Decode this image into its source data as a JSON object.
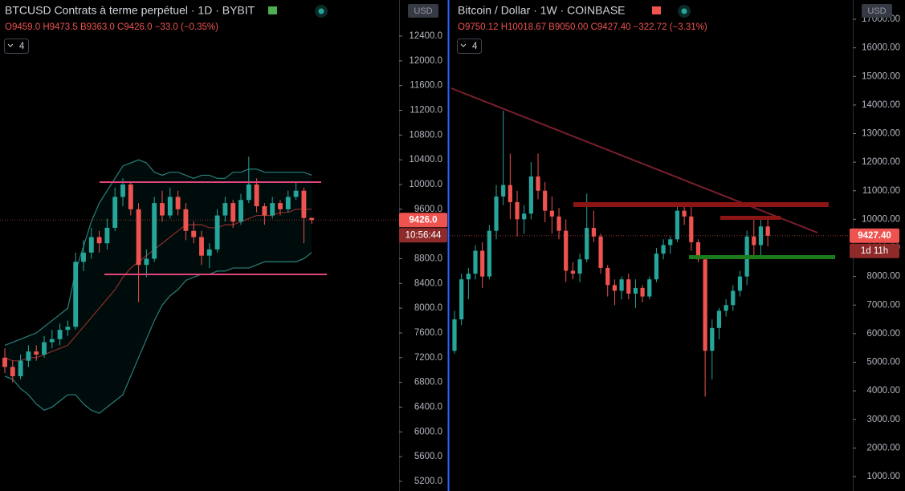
{
  "chart_data": [
    {
      "type": "candlestick",
      "title": "BTCUSD Contrats à terme perpétuel · 1D · BYBIT",
      "ohlc_text": "O9459.0 H9473.5 B9363.0 C9426.0 −33.0 (−0.35%)",
      "indicator_count": "4",
      "currency": "USD",
      "price_label": "9426.0",
      "countdown": "10:56:44",
      "up_color": "#26a69a",
      "down_color": "#ef5350",
      "ylim": [
        5044,
        12984
      ],
      "yticks": [
        {
          "value": 5200,
          "label": "5200.0"
        },
        {
          "value": 5600,
          "label": "5600.0"
        },
        {
          "value": 6000,
          "label": "6000.0"
        },
        {
          "value": 6400,
          "label": "6400.0"
        },
        {
          "value": 6800,
          "label": "6800.0"
        },
        {
          "value": 7200,
          "label": "7200.0"
        },
        {
          "value": 7600,
          "label": "7600.0"
        },
        {
          "value": 8000,
          "label": "8000.0"
        },
        {
          "value": 8400,
          "label": "8400.0"
        },
        {
          "value": 8800,
          "label": "8800.0"
        },
        {
          "value": 9200,
          "label": "9200.0"
        },
        {
          "value": 9600,
          "label": "9600.0"
        },
        {
          "value": 10000,
          "label": "10000.0"
        },
        {
          "value": 10400,
          "label": "10400.0"
        },
        {
          "value": 10800,
          "label": "10800.0"
        },
        {
          "value": 11200,
          "label": "11200.0"
        },
        {
          "value": 11600,
          "label": "11600.0"
        },
        {
          "value": 12000,
          "label": "12000.0"
        },
        {
          "value": 12400,
          "label": "12400.0"
        }
      ],
      "ohlc": [
        [
          7200,
          7350,
          6950,
          7050
        ],
        [
          7050,
          7150,
          6800,
          6900
        ],
        [
          6900,
          7250,
          6850,
          7150
        ],
        [
          7150,
          7400,
          7050,
          7300
        ],
        [
          7300,
          7400,
          7150,
          7250
        ],
        [
          7250,
          7550,
          7200,
          7450
        ],
        [
          7450,
          7650,
          7350,
          7500
        ],
        [
          7500,
          7750,
          7400,
          7650
        ],
        [
          7650,
          7800,
          7550,
          7700
        ],
        [
          7700,
          8900,
          7650,
          8750
        ],
        [
          8750,
          9100,
          8600,
          8900
        ],
        [
          8900,
          9300,
          8800,
          9150
        ],
        [
          9150,
          9250,
          8900,
          9050
        ],
        [
          9050,
          9450,
          8950,
          9300
        ],
        [
          9300,
          9950,
          9250,
          9800
        ],
        [
          9800,
          10100,
          9650,
          10000
        ],
        [
          10000,
          10050,
          9500,
          9600
        ],
        [
          9600,
          9700,
          8100,
          8700
        ],
        [
          8700,
          8950,
          8500,
          8800
        ],
        [
          8800,
          9800,
          8750,
          9700
        ],
        [
          9700,
          9900,
          9400,
          9500
        ],
        [
          9500,
          9950,
          9450,
          9800
        ],
        [
          9800,
          9900,
          9500,
          9600
        ],
        [
          9600,
          9700,
          9100,
          9250
        ],
        [
          9250,
          9400,
          9050,
          9150
        ],
        [
          9150,
          9250,
          8700,
          8850
        ],
        [
          8850,
          9050,
          8650,
          8950
        ],
        [
          8950,
          9600,
          8900,
          9500
        ],
        [
          9500,
          9800,
          9400,
          9700
        ],
        [
          9700,
          9750,
          9300,
          9400
        ],
        [
          9400,
          9850,
          9350,
          9750
        ],
        [
          9750,
          10450,
          9700,
          10000
        ],
        [
          10000,
          10100,
          9550,
          9650
        ],
        [
          9650,
          9700,
          9350,
          9500
        ],
        [
          9500,
          9800,
          9450,
          9700
        ],
        [
          9700,
          9750,
          9500,
          9600
        ],
        [
          9600,
          9900,
          9550,
          9800
        ],
        [
          9800,
          10050,
          9750,
          9900
        ],
        [
          9900,
          9950,
          9050,
          9459
        ],
        [
          9459,
          9473.5,
          9363,
          9426
        ]
      ],
      "bands": {
        "upper": [
          7400,
          7450,
          7500,
          7550,
          7600,
          7700,
          7800,
          7900,
          8000,
          8600,
          9000,
          9400,
          9700,
          9900,
          10100,
          10300,
          10350,
          10400,
          10350,
          10200,
          10150,
          10200,
          10200,
          10150,
          10100,
          10150,
          10150,
          10100,
          10100,
          10200,
          10200,
          10250,
          10250,
          10200,
          10200,
          10200,
          10200,
          10200,
          10200,
          10150
        ],
        "basis": [
          7200,
          7150,
          7150,
          7200,
          7200,
          7250,
          7300,
          7350,
          7400,
          7550,
          7700,
          7850,
          8000,
          8150,
          8300,
          8500,
          8650,
          8750,
          8850,
          8950,
          9050,
          9150,
          9250,
          9350,
          9350,
          9350,
          9300,
          9300,
          9350,
          9350,
          9400,
          9450,
          9500,
          9500,
          9500,
          9550,
          9550,
          9600,
          9600,
          9600
        ],
        "lower": [
          6900,
          6850,
          6700,
          6600,
          6450,
          6350,
          6400,
          6500,
          6600,
          6600,
          6450,
          6350,
          6300,
          6400,
          6500,
          6600,
          6900,
          7200,
          7500,
          7800,
          8050,
          8200,
          8300,
          8450,
          8500,
          8550,
          8550,
          8600,
          8600,
          8650,
          8650,
          8650,
          8700,
          8750,
          8750,
          8750,
          8750,
          8750,
          8800,
          8900
        ],
        "band_color": "#2a7f7a",
        "basis_color": "#8b2d2d"
      }
    },
    {
      "type": "candlestick",
      "title": "Bitcoin / Dollar · 1W · COINBASE",
      "ohlc_text": "O9750.12 H10018.67 B9050.00 C9427.40 −322.72 (−3.31%)",
      "indicator_count": "4",
      "currency": "USD",
      "price_label": "9427.40",
      "countdown": "1d 11h",
      "up_color": "#26a69a",
      "down_color": "#ef5350",
      "ylim": [
        495,
        17674
      ],
      "yticks": [
        {
          "value": 1000,
          "label": "1000.00"
        },
        {
          "value": 2000,
          "label": "2000.00"
        },
        {
          "value": 3000,
          "label": "3000.00"
        },
        {
          "value": 4000,
          "label": "4000.00"
        },
        {
          "value": 5000,
          "label": "5000.00"
        },
        {
          "value": 6000,
          "label": "6000.00"
        },
        {
          "value": 7000,
          "label": "7000.00"
        },
        {
          "value": 8000,
          "label": "8000.00"
        },
        {
          "value": 9000,
          "label": "9000.00"
        },
        {
          "value": 10000,
          "label": "10000.00"
        },
        {
          "value": 11000,
          "label": "11000.00"
        },
        {
          "value": 12000,
          "label": "12000.00"
        },
        {
          "value": 13000,
          "label": "13000.00"
        },
        {
          "value": 14000,
          "label": "14000.00"
        },
        {
          "value": 15000,
          "label": "15000.00"
        },
        {
          "value": 16000,
          "label": "16000.00"
        },
        {
          "value": 17000,
          "label": "17000.00"
        }
      ],
      "ohlc": [
        [
          5400,
          6800,
          5300,
          6500
        ],
        [
          6500,
          8100,
          6300,
          7900
        ],
        [
          7900,
          8300,
          7200,
          8100
        ],
        [
          8100,
          9100,
          7900,
          8900
        ],
        [
          8900,
          9200,
          7600,
          8000
        ],
        [
          8000,
          9800,
          7900,
          9600
        ],
        [
          9600,
          11200,
          9300,
          10800
        ],
        [
          10800,
          13800,
          10500,
          11200
        ],
        [
          11200,
          12300,
          10000,
          10600
        ],
        [
          10600,
          11000,
          9400,
          10000
        ],
        [
          10000,
          10500,
          9500,
          10200
        ],
        [
          10200,
          12000,
          10000,
          11500
        ],
        [
          11500,
          12300,
          10700,
          11000
        ],
        [
          11000,
          11300,
          9900,
          10300
        ],
        [
          10300,
          10800,
          9500,
          10100
        ],
        [
          10100,
          10400,
          9300,
          9600
        ],
        [
          9600,
          10000,
          7800,
          8200
        ],
        [
          8200,
          8500,
          7900,
          8100
        ],
        [
          8100,
          8800,
          7800,
          8600
        ],
        [
          8600,
          10900,
          8500,
          9700
        ],
        [
          9700,
          10300,
          9200,
          9400
        ],
        [
          9400,
          9500,
          8100,
          8300
        ],
        [
          8300,
          8400,
          7300,
          7700
        ],
        [
          7700,
          7900,
          7000,
          7500
        ],
        [
          7500,
          8000,
          7200,
          7900
        ],
        [
          7900,
          8100,
          7200,
          7400
        ],
        [
          7400,
          7900,
          6900,
          7600
        ],
        [
          7600,
          7700,
          7100,
          7300
        ],
        [
          7300,
          8000,
          7200,
          7900
        ],
        [
          7900,
          9000,
          7800,
          8800
        ],
        [
          8800,
          9300,
          8600,
          9100
        ],
        [
          9100,
          9400,
          8800,
          9300
        ],
        [
          9300,
          10500,
          9200,
          10300
        ],
        [
          10300,
          10500,
          9800,
          10100
        ],
        [
          10100,
          10500,
          8900,
          9200
        ],
        [
          9200,
          9300,
          8500,
          8600
        ],
        [
          8600,
          8700,
          3800,
          5400
        ],
        [
          5400,
          6500,
          4400,
          6200
        ],
        [
          6200,
          6900,
          5800,
          6800
        ],
        [
          6800,
          7200,
          6600,
          7000
        ],
        [
          7000,
          7700,
          6800,
          7500
        ],
        [
          7500,
          8200,
          7300,
          8000
        ],
        [
          8000,
          9600,
          7700,
          9400
        ],
        [
          9400,
          10100,
          8600,
          9100
        ],
        [
          9100,
          10000,
          8700,
          9750
        ],
        [
          9750,
          10018.67,
          9050,
          9427.4
        ]
      ]
    }
  ]
}
